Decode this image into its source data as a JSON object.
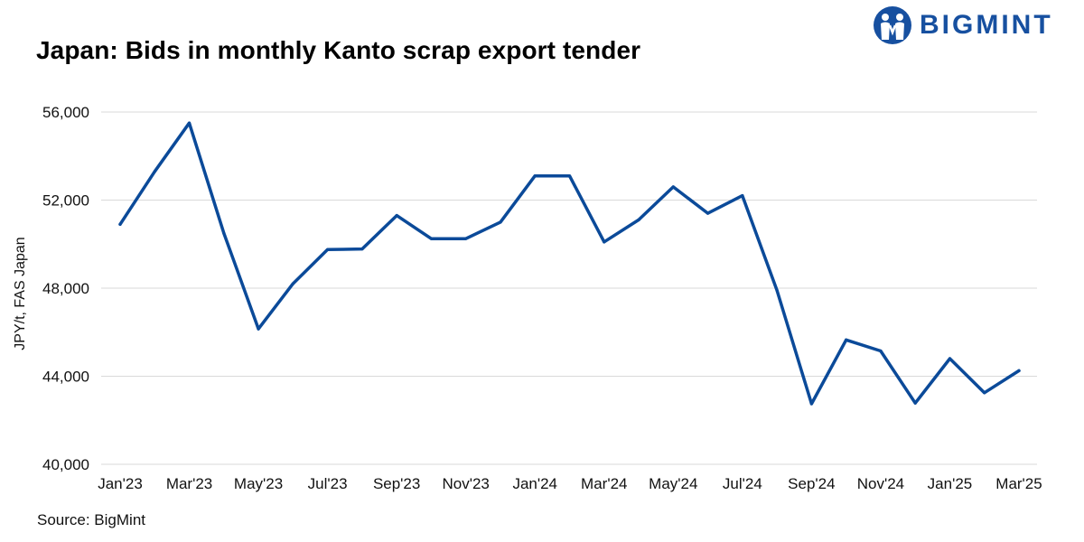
{
  "header": {
    "title": "Japan: Bids in monthly Kanto scrap export tender",
    "logo_text": "BIGMINT"
  },
  "footer": {
    "source": "Source: BigMint"
  },
  "colors": {
    "line": "#0b4a99",
    "grid": "#d9d9d9",
    "brand": "#1750a0"
  },
  "chart_data": {
    "type": "line",
    "title": "Japan: Bids in monthly Kanto scrap export tender",
    "xlabel": "",
    "ylabel": "JPY/t, FAS Japan",
    "ylim": [
      40000,
      56000
    ],
    "yticks": [
      40000,
      44000,
      48000,
      52000,
      56000
    ],
    "ytick_labels": [
      "40,000",
      "44,000",
      "48,000",
      "52,000",
      "56,000"
    ],
    "grid": true,
    "categories": [
      "Jan'23",
      "Feb'23",
      "Mar'23",
      "Apr'23",
      "May'23",
      "Jun'23",
      "Jul'23",
      "Aug'23",
      "Sep'23",
      "Oct'23",
      "Nov'23",
      "Dec'23",
      "Jan'24",
      "Feb'24",
      "Mar'24",
      "Apr'24",
      "May'24",
      "Jun'24",
      "Jul'24",
      "Aug'24",
      "Sep'24",
      "Oct'24",
      "Nov'24",
      "Dec'24",
      "Jan'25",
      "Feb'25",
      "Mar'25"
    ],
    "xtick_labels": [
      "Jan'23",
      "Mar'23",
      "May'23",
      "Jul'23",
      "Sep'23",
      "Nov'23",
      "Jan'24",
      "Mar'24",
      "May'24",
      "Jul'24",
      "Sep'24",
      "Nov'24",
      "Jan'25",
      "Mar'25"
    ],
    "series": [
      {
        "values": [
          50900,
          53300,
          55500,
          50500,
          46150,
          48200,
          49750,
          49780,
          51300,
          50250,
          50250,
          51000,
          53100,
          53100,
          50100,
          51100,
          52600,
          51400,
          52200,
          47900,
          42750,
          45650,
          45150,
          42780,
          44800,
          43250,
          44250
        ]
      }
    ]
  }
}
